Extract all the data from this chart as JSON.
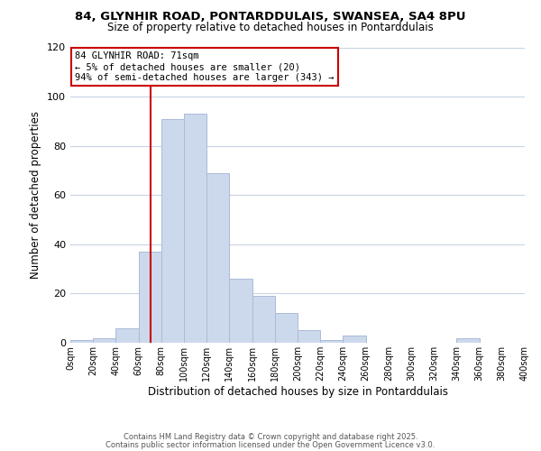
{
  "title1": "84, GLYNHIR ROAD, PONTARDDULAIS, SWANSEA, SA4 8PU",
  "title2": "Size of property relative to detached houses in Pontarddulais",
  "xlabel": "Distribution of detached houses by size in Pontarddulais",
  "ylabel": "Number of detached properties",
  "bar_edges": [
    0,
    20,
    40,
    60,
    80,
    100,
    120,
    140,
    160,
    180,
    200,
    220,
    240,
    260,
    280,
    300,
    320,
    340,
    360,
    380,
    400
  ],
  "bar_heights": [
    1,
    2,
    6,
    37,
    91,
    93,
    69,
    26,
    19,
    12,
    5,
    1,
    3,
    0,
    0,
    0,
    0,
    2,
    0,
    0
  ],
  "bar_color": "#ccd9ed",
  "bar_edgecolor": "#aabbd8",
  "vline_x": 71,
  "vline_color": "#cc0000",
  "ylim": [
    0,
    120
  ],
  "yticks": [
    0,
    20,
    40,
    60,
    80,
    100,
    120
  ],
  "xtick_labels": [
    "0sqm",
    "20sqm",
    "40sqm",
    "60sqm",
    "80sqm",
    "100sqm",
    "120sqm",
    "140sqm",
    "160sqm",
    "180sqm",
    "200sqm",
    "220sqm",
    "240sqm",
    "260sqm",
    "280sqm",
    "300sqm",
    "320sqm",
    "340sqm",
    "360sqm",
    "380sqm",
    "400sqm"
  ],
  "annotation_title": "84 GLYNHIR ROAD: 71sqm",
  "annotation_line1": "← 5% of detached houses are smaller (20)",
  "annotation_line2": "94% of semi-detached houses are larger (343) →",
  "annotation_box_color": "#ffffff",
  "annotation_box_edgecolor": "#cc0000",
  "footer1": "Contains HM Land Registry data © Crown copyright and database right 2025.",
  "footer2": "Contains public sector information licensed under the Open Government Licence v3.0.",
  "background_color": "#ffffff",
  "grid_color": "#c8d4e4"
}
